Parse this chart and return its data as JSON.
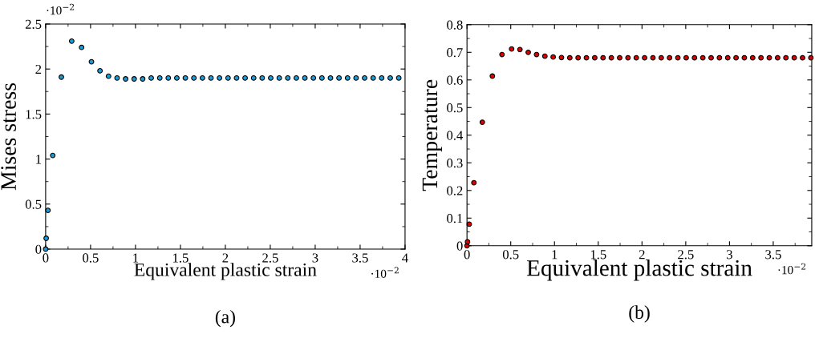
{
  "chart_data": [
    {
      "type": "scatter",
      "xlabel": "Equivalent plastic strain",
      "ylabel": "Mises stress",
      "marker": "circle",
      "grid": false,
      "legend": false,
      "annotations": [
        "·10$^{−2}$",
        "·10$^{−2}$",
        "(a)"
      ],
      "xlim": [
        0,
        4
      ],
      "xticks": [
        0,
        0.5,
        1,
        1.5,
        2,
        2.5,
        3,
        3.5,
        4
      ],
      "ylim": [
        0,
        2.5
      ],
      "yticks": [
        0,
        0.5,
        1,
        1.5,
        2,
        2.5
      ],
      "x": [
        0,
        0.006,
        0.026,
        0.079,
        0.175,
        0.29,
        0.4,
        0.51,
        0.605,
        0.7,
        0.795,
        0.89,
        0.985,
        1.08,
        1.175,
        1.27,
        1.365,
        1.46,
        1.555,
        1.65,
        1.745,
        1.84,
        1.935,
        2.03,
        2.125,
        2.22,
        2.315,
        2.41,
        2.505,
        2.6,
        2.695,
        2.79,
        2.885,
        2.98,
        3.075,
        3.17,
        3.265,
        3.36,
        3.455,
        3.55,
        3.645,
        3.74,
        3.835,
        3.93
      ],
      "series": [
        {
          "color": "#1b9ad6",
          "values": [
            0,
            0.12,
            0.43,
            1.04,
            1.91,
            2.31,
            2.24,
            2.08,
            1.98,
            1.92,
            1.9,
            1.89,
            1.89,
            1.89,
            1.9,
            1.9,
            1.9,
            1.9,
            1.9,
            1.9,
            1.9,
            1.9,
            1.9,
            1.9,
            1.9,
            1.9,
            1.9,
            1.9,
            1.9,
            1.9,
            1.9,
            1.9,
            1.9,
            1.9,
            1.9,
            1.9,
            1.9,
            1.9,
            1.9,
            1.9,
            1.9,
            1.9,
            1.9,
            1.9
          ]
        }
      ]
    },
    {
      "type": "scatter",
      "xlabel": "Equivalent plastic strain",
      "ylabel": "Temperature",
      "marker": "circle",
      "grid": false,
      "legend": false,
      "annotations": [
        "·10$^{−2}$",
        "(b)"
      ],
      "xlim": [
        0,
        3.94
      ],
      "xticks": [
        0,
        0.5,
        1,
        1.5,
        2,
        2.5,
        3,
        3.5
      ],
      "ylim": [
        0,
        0.8
      ],
      "yticks": [
        0,
        0.1,
        0.2,
        0.3,
        0.4,
        0.5,
        0.6,
        0.7,
        0.8
      ],
      "x": [
        0,
        0.006,
        0.026,
        0.079,
        0.175,
        0.29,
        0.4,
        0.51,
        0.605,
        0.7,
        0.795,
        0.89,
        0.985,
        1.08,
        1.175,
        1.27,
        1.365,
        1.46,
        1.555,
        1.65,
        1.745,
        1.84,
        1.935,
        2.03,
        2.125,
        2.22,
        2.315,
        2.41,
        2.505,
        2.6,
        2.695,
        2.79,
        2.885,
        2.98,
        3.075,
        3.17,
        3.265,
        3.36,
        3.455,
        3.55,
        3.645,
        3.74,
        3.835,
        3.93
      ],
      "series": [
        {
          "color": "#dd0000",
          "values": [
            0,
            0.014,
            0.078,
            0.228,
            0.447,
            0.614,
            0.692,
            0.712,
            0.71,
            0.7,
            0.692,
            0.686,
            0.683,
            0.681,
            0.68,
            0.68,
            0.68,
            0.68,
            0.68,
            0.68,
            0.68,
            0.68,
            0.68,
            0.68,
            0.68,
            0.68,
            0.68,
            0.68,
            0.68,
            0.68,
            0.68,
            0.68,
            0.68,
            0.68,
            0.68,
            0.68,
            0.68,
            0.68,
            0.68,
            0.68,
            0.68,
            0.68,
            0.68,
            0.68
          ]
        }
      ]
    }
  ]
}
